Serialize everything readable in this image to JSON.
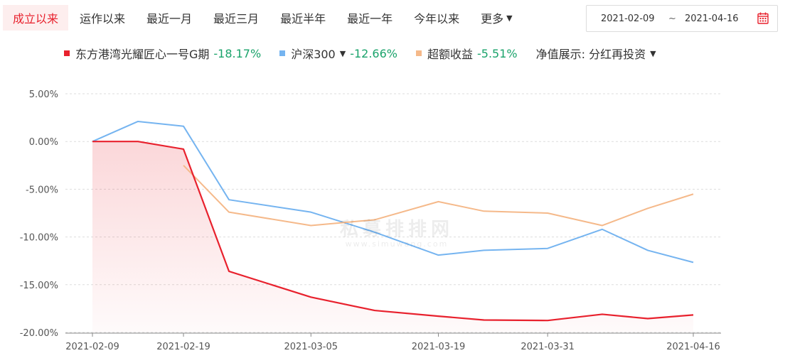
{
  "tabs": [
    {
      "label": "成立以来",
      "active": true
    },
    {
      "label": "运作以来",
      "active": false
    },
    {
      "label": "最近一月",
      "active": false
    },
    {
      "label": "最近三月",
      "active": false
    },
    {
      "label": "最近半年",
      "active": false
    },
    {
      "label": "最近一年",
      "active": false
    },
    {
      "label": "今年以来",
      "active": false
    },
    {
      "label": "更多",
      "active": false
    }
  ],
  "date_range": {
    "start": "2021-02-09",
    "separator": "~",
    "end": "2021-04-16"
  },
  "legend": {
    "fund": {
      "name": "东方港湾光耀匠心一号G期",
      "value": "-18.17%",
      "color": "#e8212d"
    },
    "index": {
      "name": "沪深300",
      "value": "-12.66%",
      "color": "#75b4f0"
    },
    "excess": {
      "name": "超额收益",
      "value": "-5.51%",
      "color": "#f5b98a"
    },
    "nav_display": "净值展示: 分红再投资"
  },
  "watermark": {
    "main": "私募排排网",
    "sub": "www.simuwang.com"
  },
  "chart_data": {
    "type": "line",
    "x": [
      "2021-02-09",
      "2021-02-14",
      "2021-02-19",
      "2021-02-24",
      "2021-03-05",
      "2021-03-12",
      "2021-03-19",
      "2021-03-24",
      "2021-03-31",
      "2021-04-06",
      "2021-04-11",
      "2021-04-16"
    ],
    "x_tick_labels": [
      "2021-02-09",
      "2021-02-19",
      "2021-03-05",
      "2021-03-19",
      "2021-03-31",
      "2021-04-16"
    ],
    "y_tick_labels": [
      "5.00%",
      "0.00%",
      "-5.00%",
      "-10.00%",
      "-15.00%",
      "-20.00%"
    ],
    "ylim": [
      -20,
      5
    ],
    "y_unit": "%",
    "grid": true,
    "series": [
      {
        "name": "东方港湾光耀匠心一号G期",
        "color": "#e8212d",
        "values": [
          0.0,
          0.0,
          -0.8,
          -13.6,
          -16.3,
          -17.7,
          -18.3,
          -18.7,
          -18.75,
          -18.1,
          -18.55,
          -18.17
        ],
        "area": true
      },
      {
        "name": "沪深300",
        "color": "#75b4f0",
        "values": [
          0.0,
          2.1,
          1.6,
          -6.1,
          -7.4,
          -9.5,
          -11.9,
          -11.4,
          -11.2,
          -9.2,
          -11.4,
          -12.66
        ],
        "area": false
      },
      {
        "name": "超额收益",
        "color": "#f5b98a",
        "values": [
          null,
          null,
          -2.5,
          -7.4,
          -8.8,
          -8.2,
          -6.3,
          -7.3,
          -7.5,
          -8.8,
          -7.0,
          -5.51
        ],
        "area": false
      }
    ]
  }
}
